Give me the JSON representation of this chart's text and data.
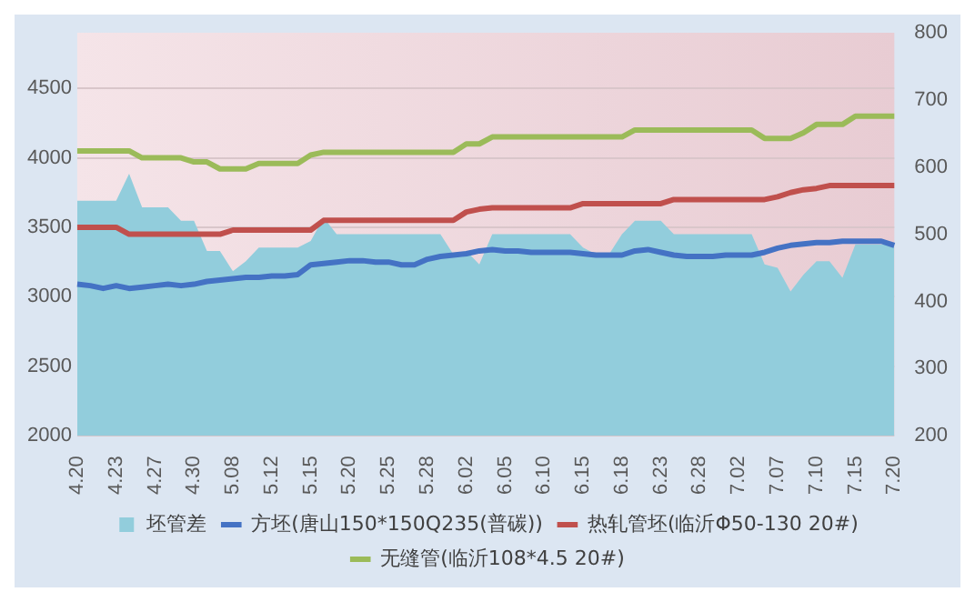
{
  "chart_data": {
    "type": "line",
    "categories": [
      "4.20",
      null,
      null,
      "4.23",
      null,
      null,
      "4.27",
      null,
      null,
      "4.30",
      null,
      null,
      "5.08",
      null,
      null,
      "5.12",
      null,
      null,
      "5.15",
      null,
      null,
      "5.20",
      null,
      null,
      "5.25",
      null,
      null,
      "5.28",
      null,
      null,
      "6.02",
      null,
      null,
      "6.05",
      null,
      null,
      "6.10",
      null,
      null,
      "6.15",
      null,
      null,
      "6.18",
      null,
      null,
      "6.23",
      null,
      null,
      "6.28",
      null,
      null,
      "7.02",
      null,
      null,
      "7.07",
      null,
      null,
      "7.10",
      null,
      null,
      "7.15",
      null,
      null,
      "7.20"
    ],
    "series": [
      {
        "name": "坯管差",
        "type": "area",
        "axis": "y2",
        "color": "#92cddc",
        "values": [
          550,
          550,
          550,
          550,
          590,
          540,
          540,
          540,
          520,
          520,
          475,
          475,
          445,
          460,
          480,
          480,
          480,
          480,
          490,
          525,
          500,
          500,
          500,
          500,
          500,
          500,
          500,
          500,
          500,
          470,
          475,
          455,
          500,
          500,
          500,
          500,
          500,
          500,
          500,
          480,
          470,
          470,
          500,
          520,
          520,
          520,
          500,
          500,
          500,
          500,
          500,
          500,
          500,
          455,
          450,
          415,
          440,
          460,
          460,
          435,
          485,
          485,
          485,
          485
        ]
      },
      {
        "name": "方坯(唐山150*150Q235(普碳))",
        "color": "#4472c4",
        "values": [
          3090,
          3080,
          3060,
          3080,
          3060,
          3070,
          3080,
          3090,
          3080,
          3090,
          3110,
          3120,
          3130,
          3140,
          3140,
          3150,
          3150,
          3160,
          3230,
          3240,
          3250,
          3260,
          3260,
          3250,
          3250,
          3230,
          3230,
          3270,
          3290,
          3300,
          3310,
          3330,
          3340,
          3330,
          3330,
          3320,
          3320,
          3320,
          3320,
          3310,
          3300,
          3300,
          3300,
          3330,
          3340,
          3320,
          3300,
          3290,
          3290,
          3290,
          3300,
          3300,
          3300,
          3320,
          3350,
          3370,
          3380,
          3390,
          3390,
          3400,
          3400,
          3400,
          3400,
          3370
        ]
      },
      {
        "name": "热轧管坯(临沂Φ50-130 20#)",
        "color": "#c0504d",
        "values": [
          3500,
          3500,
          3500,
          3500,
          3450,
          3450,
          3450,
          3450,
          3450,
          3450,
          3450,
          3450,
          3480,
          3480,
          3480,
          3480,
          3480,
          3480,
          3480,
          3550,
          3550,
          3550,
          3550,
          3550,
          3550,
          3550,
          3550,
          3550,
          3550,
          3550,
          3610,
          3630,
          3640,
          3640,
          3640,
          3640,
          3640,
          3640,
          3640,
          3670,
          3670,
          3670,
          3670,
          3670,
          3670,
          3670,
          3700,
          3700,
          3700,
          3700,
          3700,
          3700,
          3700,
          3700,
          3720,
          3750,
          3770,
          3780,
          3800,
          3800,
          3800,
          3800,
          3800,
          3800
        ]
      },
      {
        "name": "无缝管(临沂108*4.5 20#)",
        "color": "#9bbb59",
        "values": [
          4050,
          4050,
          4050,
          4050,
          4050,
          4000,
          4000,
          4000,
          4000,
          3970,
          3970,
          3920,
          3920,
          3920,
          3960,
          3960,
          3960,
          3960,
          4020,
          4040,
          4040,
          4040,
          4040,
          4040,
          4040,
          4040,
          4040,
          4040,
          4040,
          4040,
          4100,
          4100,
          4150,
          4150,
          4150,
          4150,
          4150,
          4150,
          4150,
          4150,
          4150,
          4150,
          4150,
          4200,
          4200,
          4200,
          4200,
          4200,
          4200,
          4200,
          4200,
          4200,
          4200,
          4140,
          4140,
          4140,
          4180,
          4240,
          4240,
          4240,
          4300,
          4300,
          4300,
          4300
        ]
      }
    ],
    "ylim": [
      2000,
      4900
    ],
    "yticks": [
      2000,
      2500,
      3000,
      3500,
      4000,
      4500
    ],
    "y2lim": [
      200,
      800
    ],
    "y2ticks": [
      200,
      300,
      400,
      500,
      600,
      700,
      800
    ],
    "grid": "y",
    "legend": "bottom",
    "marker": "none",
    "line_style": "solid"
  }
}
